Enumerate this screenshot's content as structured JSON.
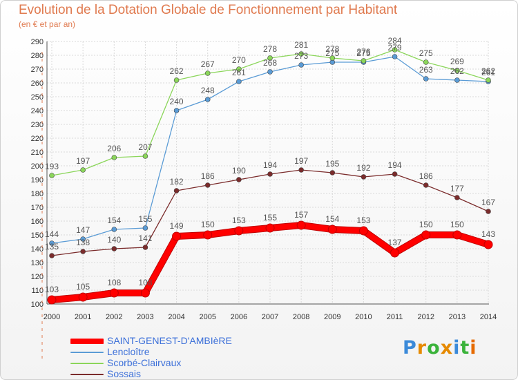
{
  "title": "Evolution de la Dotation Globale de Fonctionnement par Habitant",
  "subtitle": "(en € et par an)",
  "brand": {
    "letters": [
      "P",
      "r",
      "o",
      "x",
      "i",
      "t",
      "i"
    ],
    "colors": [
      "#3b8ad9",
      "#e68a00",
      "#3bb33b",
      "#e68a00",
      "#3b8ad9",
      "#3bb33b",
      "#e66a00"
    ]
  },
  "chart_data": {
    "type": "line",
    "title": "Evolution de la Dotation Globale de Fonctionnement par Habitant",
    "subtitle": "(en € et par an)",
    "xlabel": "",
    "ylabel": "",
    "x": [
      "2000",
      "2001",
      "2002",
      "2003",
      "2004",
      "2005",
      "2006",
      "2007",
      "2008",
      "2009",
      "2010",
      "2011",
      "2012",
      "2013",
      "2014"
    ],
    "ylim": [
      100,
      290
    ],
    "yticks": [
      100,
      110,
      120,
      130,
      140,
      150,
      160,
      170,
      180,
      190,
      200,
      210,
      220,
      230,
      240,
      250,
      260,
      270,
      280,
      290
    ],
    "grid": true,
    "legend": "bottom-left",
    "series": [
      {
        "name": "Lencloître",
        "color": "#5a9bd5",
        "labelColor": "#555555",
        "values": [
          144,
          147,
          154,
          155,
          240,
          248,
          261,
          268,
          273,
          275,
          275,
          279,
          263,
          262,
          261
        ]
      },
      {
        "name": "Scorbé-Clairvaux",
        "color": "#8bd65a",
        "labelColor": "#555555",
        "values": [
          193,
          197,
          206,
          207,
          262,
          267,
          270,
          278,
          281,
          278,
          276,
          284,
          275,
          269,
          262
        ]
      },
      {
        "name": "Sossais",
        "color": "#7b2c2c",
        "labelColor": "#555555",
        "values": [
          135,
          138,
          140,
          141,
          182,
          186,
          190,
          194,
          197,
          195,
          192,
          194,
          186,
          177,
          167
        ]
      },
      {
        "name": "SAINT-GENEST-D'AMBIèRE",
        "color": "#ff0000",
        "labelColor": "#555555",
        "bold": true,
        "values": [
          103,
          105,
          108,
          108,
          149,
          150,
          153,
          155,
          157,
          154,
          153,
          137,
          150,
          150,
          143
        ]
      }
    ],
    "legendOrder": [
      "SAINT-GENEST-D'AMBIèRE",
      "Lencloître",
      "Scorbé-Clairvaux",
      "Sossais"
    ]
  }
}
